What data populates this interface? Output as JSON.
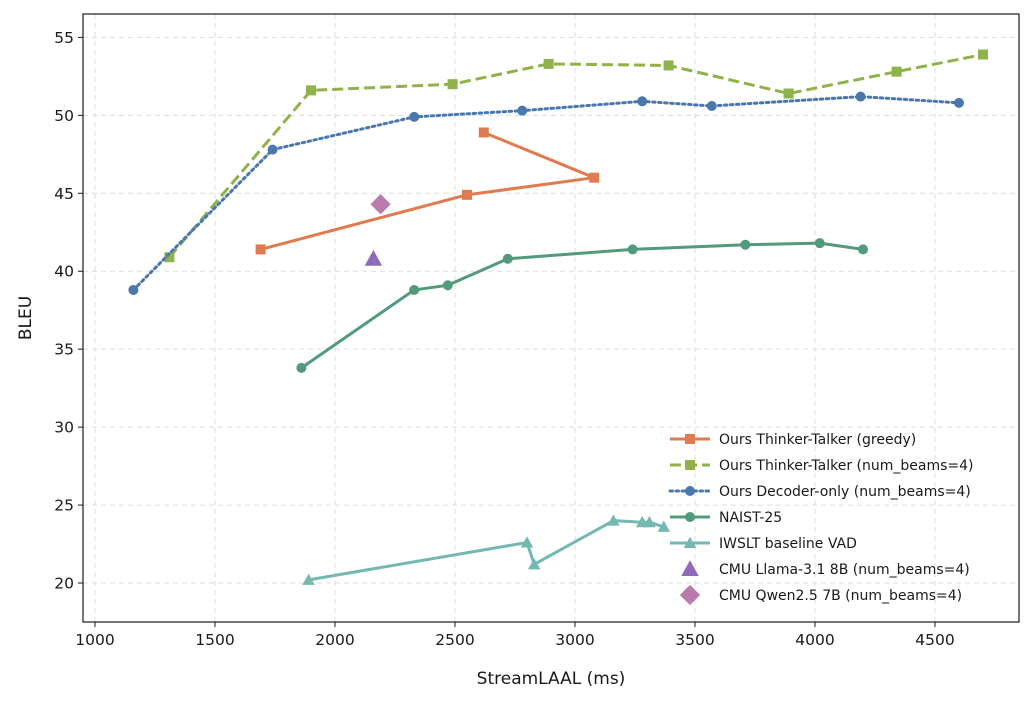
{
  "chart_data": {
    "type": "line",
    "title": "",
    "xlabel": "StreamLAAL (ms)",
    "ylabel": "BLEU",
    "xlim": [
      950,
      4850
    ],
    "ylim": [
      17.5,
      56.5
    ],
    "xticks": [
      1000,
      1500,
      2000,
      2500,
      3000,
      3500,
      4000,
      4500
    ],
    "yticks": [
      20,
      25,
      30,
      35,
      40,
      45,
      50,
      55
    ],
    "grid": true,
    "legend_position": "lower-right",
    "series": [
      {
        "name": "Ours Thinker-Talker (greedy)",
        "color": "#e07b4f",
        "marker": "square",
        "line": "solid",
        "points": [
          [
            1690,
            41.4
          ],
          [
            2550,
            44.9
          ],
          [
            3080,
            46.0
          ],
          [
            2620,
            48.9
          ]
        ]
      },
      {
        "name": "Ours Thinker-Talker (num_beams=4)",
        "color": "#8fb24a",
        "marker": "square",
        "line": "dashed",
        "points": [
          [
            1310,
            40.9
          ],
          [
            1900,
            51.6
          ],
          [
            2490,
            52.0
          ],
          [
            2890,
            53.3
          ],
          [
            3390,
            53.2
          ],
          [
            3890,
            51.4
          ],
          [
            4340,
            52.8
          ],
          [
            4700,
            53.9
          ]
        ]
      },
      {
        "name": "Ours Decoder-only (num_beams=4)",
        "color": "#4a78ad",
        "marker": "circle",
        "line": "dotted",
        "points": [
          [
            1160,
            38.8
          ],
          [
            1740,
            47.8
          ],
          [
            2330,
            49.9
          ],
          [
            2780,
            50.3
          ],
          [
            3280,
            50.9
          ],
          [
            3570,
            50.6
          ],
          [
            4190,
            51.2
          ],
          [
            4600,
            50.8
          ]
        ]
      },
      {
        "name": "NAIST-25",
        "color": "#519a7c",
        "marker": "circle",
        "line": "solid",
        "points": [
          [
            1860,
            33.8
          ],
          [
            2330,
            38.8
          ],
          [
            2470,
            39.1
          ],
          [
            2720,
            40.8
          ],
          [
            3240,
            41.4
          ],
          [
            3710,
            41.7
          ],
          [
            4020,
            41.8
          ],
          [
            4200,
            41.4
          ]
        ]
      },
      {
        "name": "IWSLT baseline VAD",
        "color": "#74b8b2",
        "marker": "triangle",
        "line": "solid",
        "points": [
          [
            1890,
            20.2
          ],
          [
            2800,
            22.6
          ],
          [
            2830,
            21.2
          ],
          [
            3160,
            24.0
          ],
          [
            3280,
            23.9
          ],
          [
            3310,
            23.9
          ],
          [
            3370,
            23.6
          ]
        ]
      },
      {
        "name": "CMU Llama-3.1 8B (num_beams=4)",
        "color": "#8e6bb8",
        "marker": "triangle",
        "line": "none",
        "points": [
          [
            2160,
            40.8
          ]
        ]
      },
      {
        "name": "CMU Qwen2.5 7B (num_beams=4)",
        "color": "#b97bae",
        "marker": "diamond",
        "line": "none",
        "points": [
          [
            2190,
            44.3
          ]
        ]
      }
    ]
  }
}
